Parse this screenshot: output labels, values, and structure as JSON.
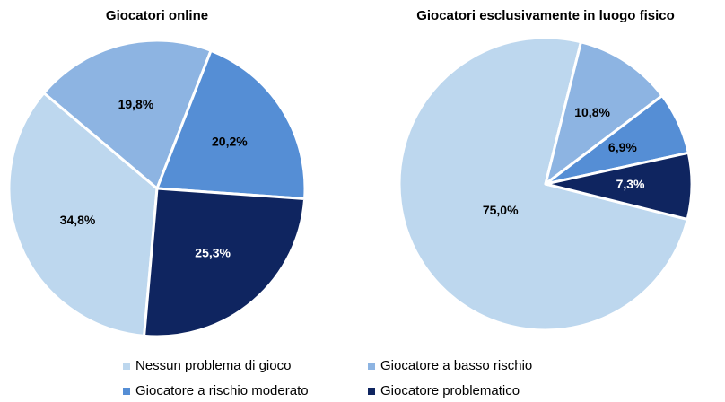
{
  "chart_data": [
    {
      "type": "pie",
      "title": "Giocatori online",
      "categories": [
        "Nessun problema di gioco",
        "Giocatore a basso rischio",
        "Giocatore a rischio moderato",
        "Giocatore problematico"
      ],
      "values": [
        34.8,
        19.8,
        20.2,
        25.3
      ],
      "value_labels": [
        "34,8%",
        "19,8%",
        "20,2%",
        "25,3%"
      ],
      "colors": [
        "#bdd7ee",
        "#8db4e2",
        "#558ed5",
        "#0f2560"
      ]
    },
    {
      "type": "pie",
      "title": "Giocatori esclusivamente in luogo fisico",
      "categories": [
        "Nessun problema di gioco",
        "Giocatore a basso rischio",
        "Giocatore a rischio moderato",
        "Giocatore problematico"
      ],
      "values": [
        75.0,
        10.8,
        6.9,
        7.3
      ],
      "value_labels": [
        "75,0%",
        "10,8%",
        "6,9%",
        "7,3%"
      ],
      "colors": [
        "#bdd7ee",
        "#8db4e2",
        "#558ed5",
        "#0f2560"
      ]
    }
  ]
}
